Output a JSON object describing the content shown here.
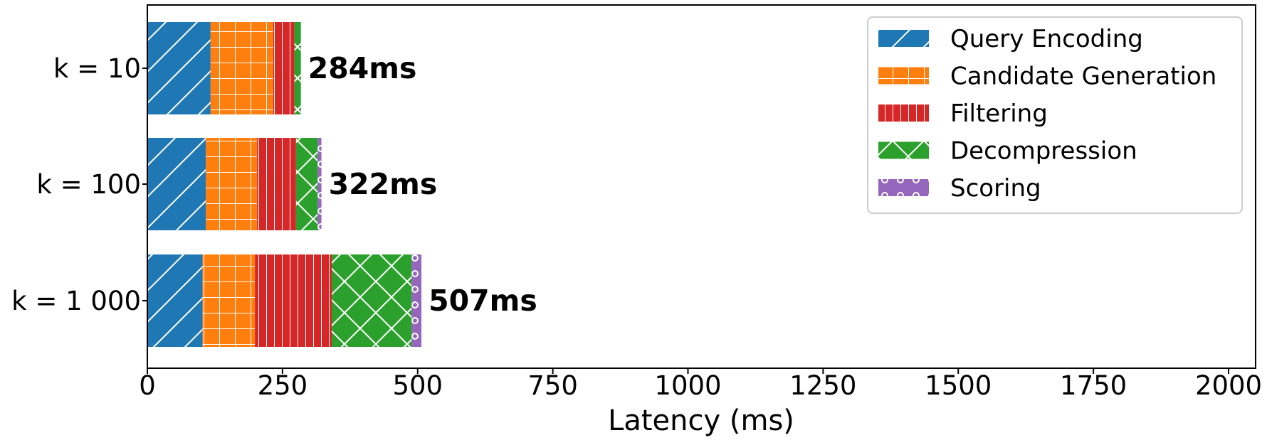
{
  "chart_data": {
    "type": "bar",
    "orientation": "horizontal",
    "stacked": true,
    "categories": [
      "k = 10",
      "k = 100",
      "k = 1 000"
    ],
    "series": [
      {
        "name": "Query Encoding",
        "color": "#1f77b4",
        "hatch": "diagonal",
        "values": [
          117,
          108,
          102
        ]
      },
      {
        "name": "Candidate Generation",
        "color": "#ff7f0e",
        "hatch": "grid",
        "values": [
          116,
          95,
          97
        ]
      },
      {
        "name": "Filtering",
        "color": "#d62728",
        "hatch": "vertical",
        "values": [
          39,
          72,
          142
        ]
      },
      {
        "name": "Decompression",
        "color": "#2ca02c",
        "hatch": "cross-diagonal",
        "values": [
          12,
          40,
          148
        ]
      },
      {
        "name": "Scoring",
        "color": "#9467bd",
        "hatch": "circles",
        "values": [
          0,
          7,
          18
        ]
      }
    ],
    "totals": [
      "284ms",
      "322ms",
      "507ms"
    ],
    "xlabel": "Latency (ms)",
    "xlim": [
      0,
      2050
    ],
    "xticks": [
      "0",
      "250",
      "500",
      "750",
      "1000",
      "1250",
      "1500",
      "1750",
      "2000"
    ],
    "xtick_values": [
      0,
      250,
      500,
      750,
      1000,
      1250,
      1500,
      1750,
      2000
    ],
    "legend_position": "top-right",
    "grid": false
  }
}
